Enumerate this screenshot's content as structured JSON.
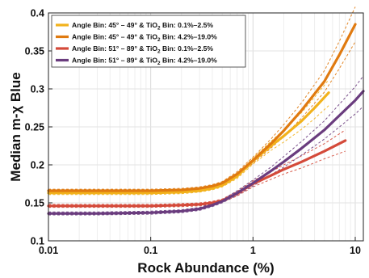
{
  "chart_data": {
    "type": "line",
    "xlabel": "Rock Abundance (%)",
    "ylabel_parts": [
      "Median m-",
      "χ",
      " Blue"
    ],
    "xscale": "log",
    "xlim": [
      0.01,
      12
    ],
    "ylim": [
      0.1,
      0.4
    ],
    "x_ticks": [
      0.01,
      0.1,
      1,
      10
    ],
    "x_tick_labels": [
      "0.01",
      "0.1",
      "1",
      "10"
    ],
    "y_ticks": [
      0.1,
      0.15,
      0.2,
      0.25,
      0.3,
      0.35,
      0.4
    ],
    "y_tick_labels": [
      "0.1",
      "0.15",
      "0.2",
      "0.25",
      "0.3",
      "0.35",
      "0.4"
    ],
    "grid": true,
    "legend_position": "top-left",
    "series": [
      {
        "legend_parts": [
          "Angle Bin: 45° – 49° & TiO",
          "2",
          " Bin: 0.1%–2.5%"
        ],
        "color": "#F2B21C",
        "x": [
          0.01,
          0.03,
          0.1,
          0.2,
          0.3,
          0.4,
          0.5,
          0.7,
          1,
          1.5,
          2,
          3,
          4,
          5.5
        ],
        "y": [
          0.163,
          0.163,
          0.163,
          0.164,
          0.166,
          0.169,
          0.173,
          0.185,
          0.205,
          0.225,
          0.238,
          0.258,
          0.275,
          0.295
        ],
        "ci_low": [
          0.161,
          0.161,
          0.161,
          0.162,
          0.164,
          0.167,
          0.171,
          0.182,
          0.201,
          0.219,
          0.23,
          0.247,
          0.261,
          0.278
        ],
        "ci_high": [
          0.165,
          0.165,
          0.165,
          0.166,
          0.168,
          0.171,
          0.175,
          0.188,
          0.209,
          0.231,
          0.246,
          0.269,
          0.289,
          0.312
        ]
      },
      {
        "legend_parts": [
          "Angle Bin: 45° – 49° & TiO",
          "2",
          " Bin: 4.2%–19.0%"
        ],
        "color": "#E07A10",
        "x": [
          0.01,
          0.03,
          0.1,
          0.2,
          0.3,
          0.4,
          0.5,
          0.7,
          1,
          1.5,
          2,
          3,
          5,
          7,
          10
        ],
        "y": [
          0.166,
          0.166,
          0.166,
          0.167,
          0.169,
          0.172,
          0.176,
          0.188,
          0.206,
          0.228,
          0.245,
          0.272,
          0.31,
          0.345,
          0.385
        ],
        "ci_low": [
          0.164,
          0.164,
          0.164,
          0.165,
          0.167,
          0.17,
          0.174,
          0.185,
          0.202,
          0.222,
          0.237,
          0.262,
          0.296,
          0.327,
          0.362
        ],
        "ci_high": [
          0.168,
          0.168,
          0.168,
          0.169,
          0.171,
          0.174,
          0.178,
          0.191,
          0.21,
          0.234,
          0.253,
          0.282,
          0.324,
          0.363,
          0.408
        ]
      },
      {
        "legend_parts": [
          "Angle Bin: 51° – 89° & TiO",
          "2",
          " Bin: 0.1%–2.5%"
        ],
        "color": "#D44A3A",
        "x": [
          0.01,
          0.03,
          0.1,
          0.2,
          0.3,
          0.4,
          0.5,
          0.7,
          1,
          1.5,
          2,
          3,
          5,
          8
        ],
        "y": [
          0.146,
          0.146,
          0.146,
          0.147,
          0.148,
          0.15,
          0.153,
          0.162,
          0.175,
          0.186,
          0.194,
          0.204,
          0.218,
          0.232
        ],
        "ci_low": [
          0.144,
          0.144,
          0.144,
          0.145,
          0.146,
          0.148,
          0.151,
          0.159,
          0.171,
          0.181,
          0.188,
          0.196,
          0.208,
          0.218
        ],
        "ci_high": [
          0.148,
          0.148,
          0.148,
          0.149,
          0.15,
          0.152,
          0.155,
          0.165,
          0.179,
          0.191,
          0.2,
          0.212,
          0.228,
          0.246
        ]
      },
      {
        "legend_parts": [
          "Angle Bin: 51° – 89° & TiO",
          "2",
          " Bin: 4.2%–19.0%"
        ],
        "color": "#6A3C7E",
        "x": [
          0.01,
          0.03,
          0.1,
          0.2,
          0.3,
          0.4,
          0.5,
          0.7,
          1,
          1.5,
          2,
          3,
          5,
          7,
          10,
          12
        ],
        "y": [
          0.136,
          0.136,
          0.137,
          0.139,
          0.142,
          0.147,
          0.152,
          0.163,
          0.176,
          0.192,
          0.204,
          0.222,
          0.246,
          0.265,
          0.285,
          0.297
        ],
        "ci_low": [
          0.134,
          0.134,
          0.135,
          0.137,
          0.14,
          0.145,
          0.15,
          0.16,
          0.172,
          0.187,
          0.197,
          0.213,
          0.234,
          0.25,
          0.267,
          0.277
        ],
        "ci_high": [
          0.138,
          0.138,
          0.139,
          0.141,
          0.144,
          0.149,
          0.154,
          0.166,
          0.18,
          0.197,
          0.211,
          0.231,
          0.258,
          0.28,
          0.303,
          0.317
        ]
      }
    ]
  }
}
